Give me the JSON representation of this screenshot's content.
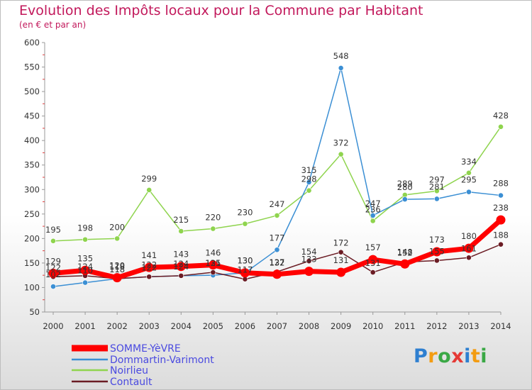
{
  "header": {
    "title": "Evolution des Impôts locaux pour la Commune par Habitant",
    "subtitle": "(en € et par an)"
  },
  "logo": {
    "text": "Proxiti",
    "letters": [
      "P",
      "r",
      "o",
      "x",
      "i",
      "t",
      "i"
    ],
    "colors": [
      "#2e7fd0",
      "#f39c12",
      "#3aa845",
      "#e53935",
      "#2e7fd0",
      "#f39c12",
      "#3aa845"
    ]
  },
  "chart_data": {
    "type": "line",
    "title": "Evolution des Impôts locaux pour la Commune par Habitant",
    "subtitle": "(en € et par an)",
    "x": [
      "2000",
      "2001",
      "2002",
      "2003",
      "2004",
      "2005",
      "2006",
      "2007",
      "2008",
      "2009",
      "2010",
      "2011",
      "2012",
      "2013",
      "2014"
    ],
    "ylim": [
      50,
      600
    ],
    "yticks": [
      50,
      100,
      150,
      200,
      250,
      300,
      350,
      400,
      450,
      500,
      550,
      600
    ],
    "grid": false,
    "legend_position": "bottom-left",
    "series": [
      {
        "name": "SOMME-YèVRE",
        "color": "#ff0000",
        "values": [
          129,
          135,
          120,
          141,
          143,
          146,
          130,
          127,
          133,
          131,
          157,
          148,
          173,
          180,
          238
        ]
      },
      {
        "name": "Dommartin-Varimont",
        "color": "#3b8fd4",
        "values": [
          102,
          110,
          118,
          122,
          124,
          125,
          130,
          177,
          315,
          548,
          247,
          280,
          281,
          295,
          288
        ]
      },
      {
        "name": "Noirlieu",
        "color": "#8fd44e",
        "values": [
          195,
          198,
          200,
          299,
          215,
          220,
          230,
          247,
          298,
          372,
          236,
          289,
          297,
          334,
          428
        ]
      },
      {
        "name": "Contault",
        "color": "#6b1c24",
        "values": [
          122,
          124,
          118,
          122,
          124,
          131,
          117,
          132,
          154,
          172,
          131,
          152,
          155,
          161,
          188
        ]
      }
    ]
  }
}
